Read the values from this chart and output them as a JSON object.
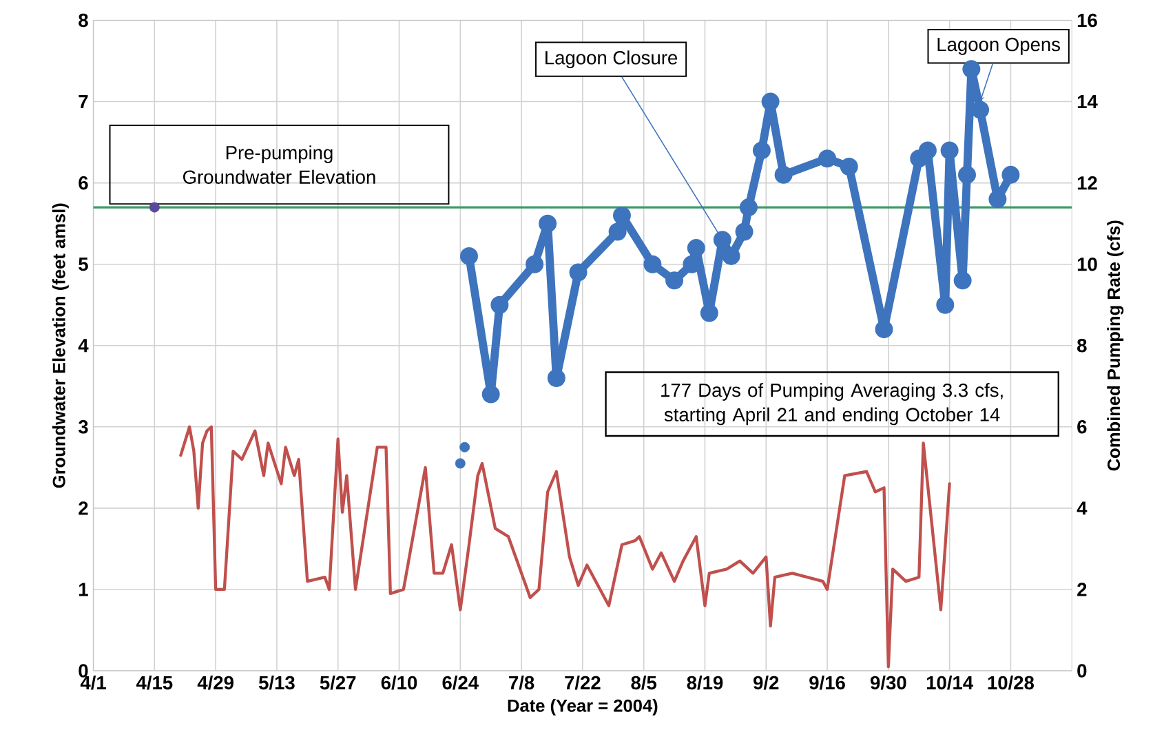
{
  "chart_data": {
    "type": "line",
    "xlabel": "Date (Year = 2004)",
    "ylabel": "Groundwater Elevation (feet amsl)",
    "y2label": "Combined Pumping Rate (cfs)",
    "xlim": [
      "2004-04-01",
      "2004-11-11"
    ],
    "ylim": [
      0,
      8
    ],
    "y2lim": [
      0,
      16
    ],
    "xticks": [
      {
        "value": "2004-04-01",
        "label": "4/1"
      },
      {
        "value": "2004-04-15",
        "label": "4/15"
      },
      {
        "value": "2004-04-29",
        "label": "4/29"
      },
      {
        "value": "2004-05-13",
        "label": "5/13"
      },
      {
        "value": "2004-05-27",
        "label": "5/27"
      },
      {
        "value": "2004-06-10",
        "label": "6/10"
      },
      {
        "value": "2004-06-24",
        "label": "6/24"
      },
      {
        "value": "2004-07-08",
        "label": "7/8"
      },
      {
        "value": "2004-07-22",
        "label": "7/22"
      },
      {
        "value": "2004-08-05",
        "label": "8/5"
      },
      {
        "value": "2004-08-19",
        "label": "8/19"
      },
      {
        "value": "2004-09-02",
        "label": "9/2"
      },
      {
        "value": "2004-09-16",
        "label": "9/16"
      },
      {
        "value": "2004-09-30",
        "label": "9/30"
      },
      {
        "value": "2004-10-14",
        "label": "10/14"
      },
      {
        "value": "2004-10-28",
        "label": "10/28"
      }
    ],
    "yticks": [
      0,
      1,
      2,
      3,
      4,
      5,
      6,
      7,
      8
    ],
    "y2ticks": [
      0,
      2,
      4,
      6,
      8,
      10,
      12,
      14,
      16
    ],
    "grid": true,
    "ref_lines": [
      {
        "axis": "y",
        "value": 5.7,
        "label": "Pre-pumping Groundwater Elevation",
        "color": "#3c9a6a"
      }
    ],
    "annotations": [
      {
        "text": "Lagoon Opens",
        "x": "2004-10-21",
        "y": 7.0
      },
      {
        "text": "Lagoon Closure",
        "x": "2004-08-23",
        "y": 5.3
      },
      "177 Days of Pumping Averaging 3.3 cfs, starting April 21 and ending October 14"
    ],
    "series": [
      {
        "type": "line",
        "color": "#3d74bd",
        "marker": "circle",
        "x": [
          "2004-06-26",
          "2004-07-01",
          "2004-07-03",
          "2004-07-11",
          "2004-07-14",
          "2004-07-16",
          "2004-07-21",
          "2004-07-30",
          "2004-07-31",
          "2004-08-07",
          "2004-08-12",
          "2004-08-16",
          "2004-08-17",
          "2004-08-20",
          "2004-08-23",
          "2004-08-25",
          "2004-08-28",
          "2004-08-29",
          "2004-09-01",
          "2004-09-03",
          "2004-09-06",
          "2004-09-16",
          "2004-09-21",
          "2004-09-29",
          "2004-10-07",
          "2004-10-09",
          "2004-10-13",
          "2004-10-14",
          "2004-10-17",
          "2004-10-18",
          "2004-10-19",
          "2004-10-21",
          "2004-10-25",
          "2004-10-28"
        ],
        "values": [
          5.1,
          3.4,
          4.5,
          5.0,
          5.5,
          3.6,
          4.9,
          5.4,
          5.6,
          5.0,
          4.8,
          5.0,
          5.2,
          4.4,
          5.3,
          5.1,
          5.4,
          5.7,
          6.4,
          7.0,
          6.1,
          6.3,
          6.2,
          4.2,
          6.3,
          6.4,
          4.5,
          6.4,
          4.8,
          6.1,
          7.4,
          6.9,
          5.8,
          6.1
        ]
      },
      {
        "type": "scatter",
        "color": "#3d74bd",
        "marker": "circle",
        "x": [
          "2004-06-24",
          "2004-06-25"
        ],
        "values": [
          2.55,
          2.75
        ]
      },
      {
        "type": "scatter",
        "color": "#5a4a9a",
        "marker": "circle",
        "x": [
          "2004-04-15"
        ],
        "values": [
          5.7
        ]
      },
      {
        "type": "line",
        "axis": "y2",
        "color": "#c0504d",
        "marker": "none",
        "x": [
          "2004-04-21",
          "2004-04-23",
          "2004-04-24",
          "2004-04-25",
          "2004-04-26",
          "2004-04-27",
          "2004-04-28",
          "2004-04-29",
          "2004-05-01",
          "2004-05-03",
          "2004-05-05",
          "2004-05-08",
          "2004-05-10",
          "2004-05-11",
          "2004-05-14",
          "2004-05-15",
          "2004-05-17",
          "2004-05-18",
          "2004-05-20",
          "2004-05-24",
          "2004-05-25",
          "2004-05-27",
          "2004-05-28",
          "2004-05-29",
          "2004-05-31",
          "2004-06-05",
          "2004-06-07",
          "2004-06-08",
          "2004-06-11",
          "2004-06-16",
          "2004-06-18",
          "2004-06-20",
          "2004-06-22",
          "2004-06-24",
          "2004-06-26",
          "2004-06-28",
          "2004-06-29",
          "2004-07-02",
          "2004-07-05",
          "2004-07-10",
          "2004-07-12",
          "2004-07-14",
          "2004-07-16",
          "2004-07-19",
          "2004-07-21",
          "2004-07-23",
          "2004-07-28",
          "2004-07-31",
          "2004-08-03",
          "2004-08-04",
          "2004-08-07",
          "2004-08-09",
          "2004-08-12",
          "2004-08-14",
          "2004-08-17",
          "2004-08-19",
          "2004-08-20",
          "2004-08-24",
          "2004-08-27",
          "2004-08-30",
          "2004-09-02",
          "2004-09-03",
          "2004-09-04",
          "2004-09-08",
          "2004-09-15",
          "2004-09-16",
          "2004-09-20",
          "2004-09-25",
          "2004-09-27",
          "2004-09-29",
          "2004-09-30",
          "2004-10-01",
          "2004-10-04",
          "2004-10-07",
          "2004-10-08",
          "2004-10-12",
          "2004-10-14"
        ],
        "values": [
          5.3,
          6.0,
          5.4,
          4.0,
          5.6,
          5.9,
          6.0,
          2.0,
          2.0,
          5.4,
          5.2,
          5.9,
          4.8,
          5.6,
          4.6,
          5.5,
          4.8,
          5.2,
          2.2,
          2.3,
          2.0,
          5.7,
          3.9,
          4.8,
          2.0,
          5.5,
          5.5,
          1.9,
          2.0,
          5.0,
          2.4,
          2.4,
          3.1,
          1.5,
          3.1,
          4.8,
          5.1,
          3.5,
          3.3,
          1.8,
          2.0,
          4.4,
          4.9,
          2.8,
          2.1,
          2.6,
          1.6,
          3.1,
          3.2,
          3.3,
          2.5,
          2.9,
          2.2,
          2.7,
          3.3,
          1.6,
          2.4,
          2.5,
          2.7,
          2.4,
          2.8,
          1.1,
          2.3,
          2.4,
          2.2,
          2.0,
          4.8,
          4.9,
          4.4,
          4.5,
          0.1,
          2.5,
          2.2,
          2.3,
          5.6,
          1.5,
          4.6
        ]
      }
    ]
  }
}
